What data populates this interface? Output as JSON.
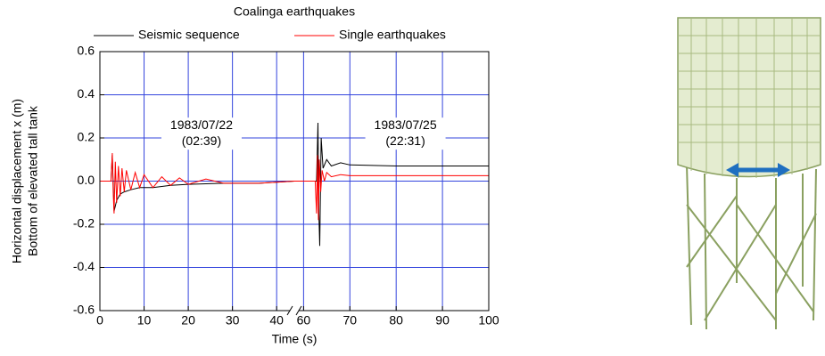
{
  "chart_data": {
    "type": "line",
    "title": "Coalinga earthquakes",
    "xlabel": "Time (s)",
    "ylabel": [
      "Horizontal displacement x (m)",
      "Bottom of elevated tall tank"
    ],
    "xlim": [
      0,
      100
    ],
    "xbreak": [
      44,
      58
    ],
    "xticks": [
      0,
      10,
      20,
      30,
      40,
      60,
      70,
      80,
      90,
      100
    ],
    "ylim": [
      -0.6,
      0.6
    ],
    "yticks": [
      -0.6,
      -0.4,
      -0.2,
      {
        "value": 0,
        "label": "0.0"
      },
      0.2,
      0.4,
      0.6
    ],
    "grid": true,
    "legend": "top",
    "annotations": [
      {
        "x": 23,
        "y": 0.22,
        "lines": [
          "1983/07/22",
          "(02:39)"
        ]
      },
      {
        "x": 82,
        "y": 0.22,
        "lines": [
          "1983/07/25",
          "(22:31)"
        ]
      }
    ],
    "series": [
      {
        "name": "Seismic sequence",
        "color": "#000000",
        "x": [
          0,
          2.5,
          2.8,
          3.2,
          3.8,
          4.6,
          5.5,
          7,
          9,
          12,
          16,
          20,
          28,
          36,
          44,
          50,
          58,
          62.8,
          63.1,
          63.3,
          63.5,
          63.8,
          64.2,
          65,
          66,
          68,
          70,
          80,
          90,
          100
        ],
        "values": [
          0,
          0,
          0.12,
          -0.14,
          -0.09,
          -0.06,
          -0.05,
          -0.04,
          -0.03,
          -0.03,
          -0.02,
          -0.015,
          -0.01,
          -0.01,
          0,
          null,
          0,
          0,
          0.27,
          -0.15,
          -0.3,
          0.2,
          0.06,
          0.1,
          0.07,
          0.085,
          0.075,
          0.07,
          0.07,
          0.07
        ]
      },
      {
        "name": "Single earthquakes",
        "color": "#ff0000",
        "x": [
          0,
          2.5,
          2.8,
          3.0,
          3.2,
          3.5,
          3.8,
          4.2,
          4.6,
          5,
          5.5,
          6,
          7,
          8,
          9,
          10,
          12,
          14,
          16,
          18,
          20,
          24,
          28,
          32,
          36,
          40,
          44,
          50,
          58,
          62.5,
          62.8,
          63,
          63.2,
          63.4,
          63.7,
          64,
          64.5,
          65,
          66,
          68,
          70,
          75,
          80,
          90,
          100
        ],
        "values": [
          0,
          0,
          0.13,
          -0.05,
          -0.15,
          0.09,
          -0.1,
          0.07,
          -0.07,
          0.06,
          -0.05,
          0.05,
          -0.04,
          0.04,
          -0.03,
          0.03,
          -0.03,
          0.02,
          -0.02,
          0.015,
          -0.015,
          0.01,
          -0.01,
          -0.01,
          -0.01,
          -0.005,
          0,
          null,
          0,
          0,
          -0.15,
          0.12,
          -0.18,
          0.1,
          -0.05,
          0.05,
          0,
          0.04,
          0.02,
          0.03,
          0.025,
          0.025,
          0.025,
          0.025,
          0.025
        ]
      }
    ]
  }
}
